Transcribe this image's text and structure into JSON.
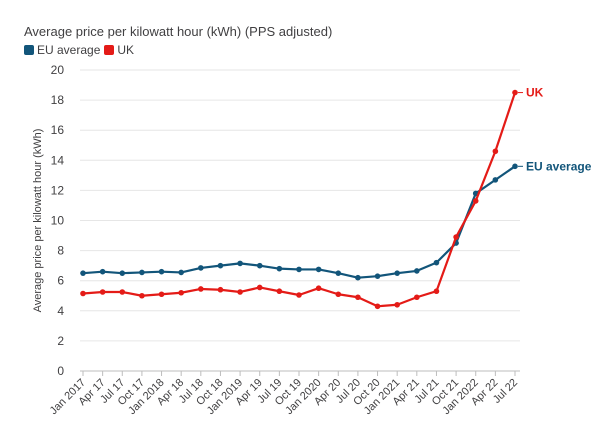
{
  "title": "Average price per kilowatt hour (kWh) (PPS adjusted)",
  "legend": [
    {
      "name": "EU average",
      "color": "#12557a"
    },
    {
      "name": "UK",
      "color": "#e41b17"
    }
  ],
  "chart_data": {
    "type": "line",
    "title": "Average price per kilowatt hour (kWh) (PPS adjusted)",
    "ylabel": "Average price per kilowatt hour (kWh)",
    "xlabel": "",
    "ylim": [
      0,
      20
    ],
    "yticks": [
      0,
      2,
      4,
      6,
      8,
      10,
      12,
      14,
      16,
      18,
      20
    ],
    "grid": true,
    "legend_position": "top-left",
    "categories": [
      "Jan 2017",
      "Apr 17",
      "Jul 17",
      "Oct 17",
      "Jan 2018",
      "Apr 18",
      "Jul 18",
      "Oct 18",
      "Jan 2019",
      "Apr 19",
      "Jul 19",
      "Oct 19",
      "Jan 2020",
      "Apr 20",
      "Jul 20",
      "Oct 20",
      "Jan 2021",
      "Apr 21",
      "Jul 21",
      "Oct 21",
      "Jan 2022",
      "Apr 22",
      "Jul 22"
    ],
    "series": [
      {
        "name": "EU average",
        "color": "#12557a",
        "end_label": "EU average",
        "values": [
          6.5,
          6.6,
          6.5,
          6.55,
          6.6,
          6.55,
          6.85,
          7.0,
          7.15,
          7.0,
          6.8,
          6.75,
          6.75,
          6.5,
          6.2,
          6.3,
          6.5,
          6.65,
          7.2,
          8.5,
          11.8,
          12.7,
          13.6
        ]
      },
      {
        "name": "UK",
        "color": "#e41b17",
        "end_label": "UK",
        "values": [
          5.15,
          5.25,
          5.25,
          5.0,
          5.1,
          5.2,
          5.45,
          5.4,
          5.25,
          5.55,
          5.3,
          5.05,
          5.5,
          5.1,
          4.9,
          4.3,
          4.4,
          4.9,
          5.3,
          8.9,
          11.3,
          14.6,
          18.5
        ]
      }
    ]
  }
}
